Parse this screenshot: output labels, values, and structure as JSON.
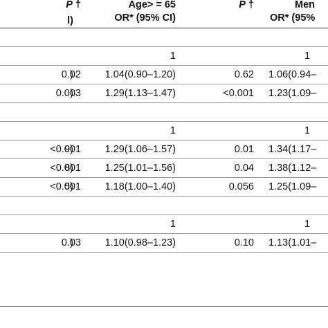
{
  "header": {
    "col0_clip": "l)",
    "p1": "P",
    "p1_mark": "†",
    "age_line1": "Age> = 65",
    "age_line2": "OR* (95% CI)",
    "p2": "P",
    "p2_mark": "†",
    "men_line1": "Men",
    "men_line2": "OR* (95%"
  },
  "rows": [
    {
      "label": "",
      "p1": "",
      "or1": "",
      "p2": "",
      "or2": "",
      "kind": "blank"
    },
    {
      "label": "",
      "p1": "",
      "or1": "1",
      "p2": "",
      "or2": "1",
      "kind": "ref"
    },
    {
      "label": ")",
      "p1": "0.02",
      "or1": "1.04(0.90–1.20)",
      "p2": "0.62",
      "or2": "1.06(0.94–"
    },
    {
      "label": ")",
      "p1": "0.003",
      "or1": "1.29(1.13–1.47)",
      "p2": "<0.001",
      "or2": "1.23(1.09–"
    },
    {
      "label": "",
      "p1": "",
      "or1": "",
      "p2": "",
      "or2": "",
      "kind": "blank"
    },
    {
      "label": "",
      "p1": "",
      "or1": "1",
      "p2": "",
      "or2": "1",
      "kind": "ref"
    },
    {
      "label": "9)",
      "p1": "<0.001",
      "or1": "1.29(1.06–1.57)",
      "p2": "0.01",
      "or2": "1.34(1.17–"
    },
    {
      "label": "8)",
      "p1": "<0.001",
      "or1": "1.25(1.01–1.56)",
      "p2": "0.04",
      "or2": "1.38(1.12–"
    },
    {
      "label": "5)",
      "p1": "<0.001",
      "or1": "1.18(1.00–1.40)",
      "p2": "0.056",
      "or2": "1.25(1.09–"
    },
    {
      "label": "",
      "p1": "",
      "or1": "",
      "p2": "",
      "or2": "",
      "kind": "blank"
    },
    {
      "label": "",
      "p1": "",
      "or1": "1",
      "p2": "",
      "or2": "1",
      "kind": "ref"
    },
    {
      "label": ")",
      "p1": "0.03",
      "or1": "1.10(0.98–1.23)",
      "p2": "0.10",
      "or2": "1.13(1.01–"
    }
  ]
}
